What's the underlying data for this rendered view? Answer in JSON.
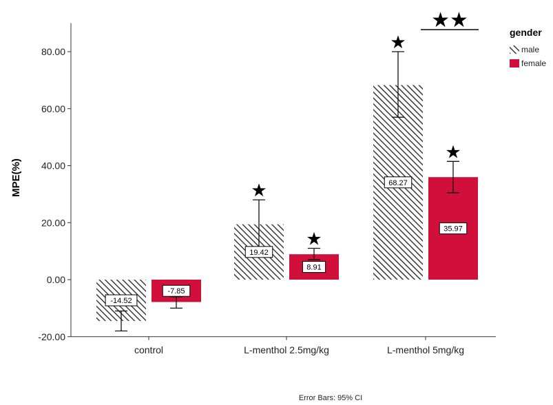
{
  "chart_data": {
    "type": "bar",
    "ylabel": "MPE(%)",
    "ylim": [
      -20,
      90
    ],
    "yticks": [
      -20,
      0,
      20,
      40,
      60,
      80
    ],
    "ytick_labels": [
      "-20.00",
      "0.00",
      "20.00",
      "40.00",
      "60.00",
      "80.00"
    ],
    "categories": [
      "control",
      "L-menthol 2.5mg/kg",
      "L-menthol 5mg/kg"
    ],
    "legend_title": "gender",
    "legend_position": "top-right",
    "series": [
      {
        "name": "male",
        "pattern": "hatched",
        "color": "#3a3a3a",
        "values": [
          -14.52,
          19.42,
          68.27
        ],
        "labels": [
          "-14.52",
          "19.42",
          "68.27"
        ],
        "ci_low": [
          -18.0,
          11.0,
          57.0
        ],
        "ci_high": [
          -11.0,
          28.0,
          80.0
        ],
        "stars": [
          0,
          1,
          1
        ]
      },
      {
        "name": "female",
        "pattern": "solid",
        "color": "#d0103a",
        "values": [
          -7.85,
          8.91,
          35.97
        ],
        "labels": [
          "-7.85",
          "8.91",
          "35.97"
        ],
        "ci_low": [
          -10.0,
          7.0,
          30.5
        ],
        "ci_high": [
          -6.0,
          11.0,
          41.5
        ],
        "stars": [
          0,
          1,
          1
        ]
      }
    ],
    "annotations": [
      {
        "text": "★★",
        "group": 2,
        "meaning": "male vs female at L-menthol 5mg/kg"
      }
    ],
    "star_symbol": "★",
    "footnote": "Error Bars: 95% CI"
  }
}
